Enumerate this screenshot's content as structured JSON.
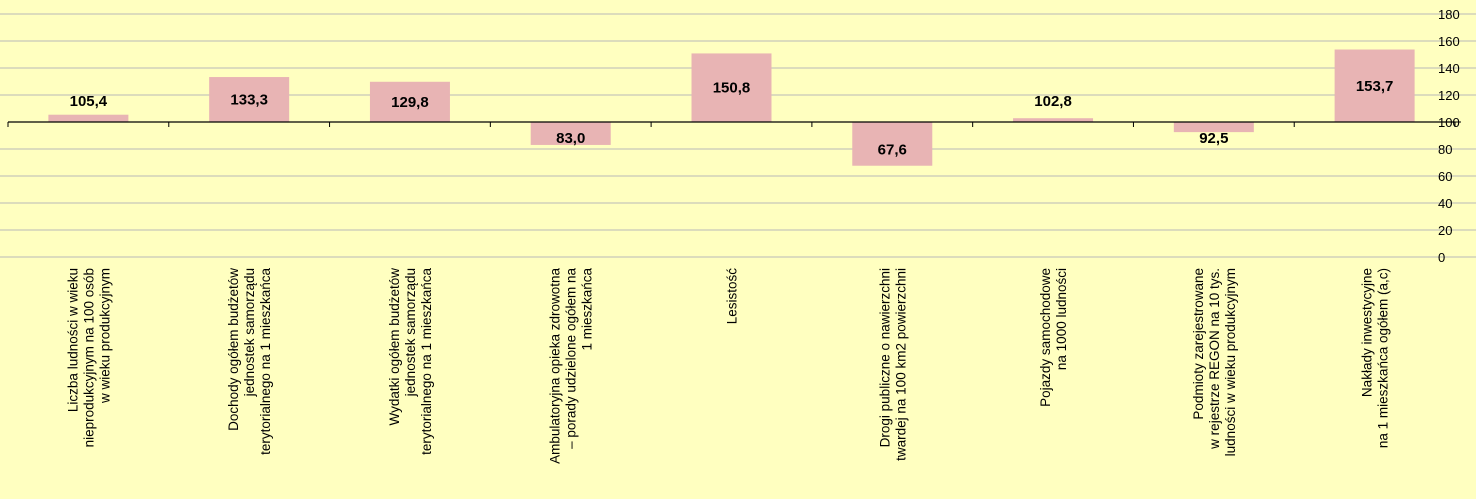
{
  "chart_data": {
    "type": "bar",
    "title": "",
    "xlabel": "",
    "ylabel": "",
    "baseline": 100,
    "ylim": [
      0,
      180
    ],
    "yticks": [
      0,
      20,
      40,
      60,
      80,
      100,
      120,
      140,
      160,
      180
    ],
    "grid": true,
    "bar_color": "#e8b4b4",
    "background": "#ffffc0",
    "categories": [
      [
        "Liczba ludności w  wieku",
        "nieprodukcyjnym na 100 osób",
        "w  wieku produkcyjnym"
      ],
      [
        "Dochody ogółem budżetów",
        "jednostek samorządu",
        "terytorialnego na 1 mieszkańca"
      ],
      [
        "Wydatki ogółem budżetów",
        "jednostek samorządu",
        "terytorialnego na  1 mieszkańca"
      ],
      [
        "Ambulatoryjna opieka zdrowotna",
        "– porady udzielone ogółem na",
        "1 mieszkańca"
      ],
      [
        "Lesistość"
      ],
      [
        "Drogi publiczne o nawierzchni",
        "twardej na 100 km2 powierzchni"
      ],
      [
        "Pojazdy samochodowe",
        "na  1000 ludności"
      ],
      [
        "Podmioty zarejestrowane",
        "w  rejestrze REGON na 10 tys.",
        "ludności w  wieku  produkcyjnym"
      ],
      [
        "Nakłady inwestycyjne",
        "na  1 mieszkańca ogółem (a,c)"
      ]
    ],
    "values": [
      105.4,
      133.3,
      129.8,
      83.0,
      150.8,
      67.6,
      102.8,
      92.5,
      153.7
    ],
    "data_labels": [
      "105,4",
      "133,3",
      "129,8",
      "83,0",
      "150,8",
      "67,6",
      "102,8",
      "92,5",
      "153,7"
    ]
  }
}
